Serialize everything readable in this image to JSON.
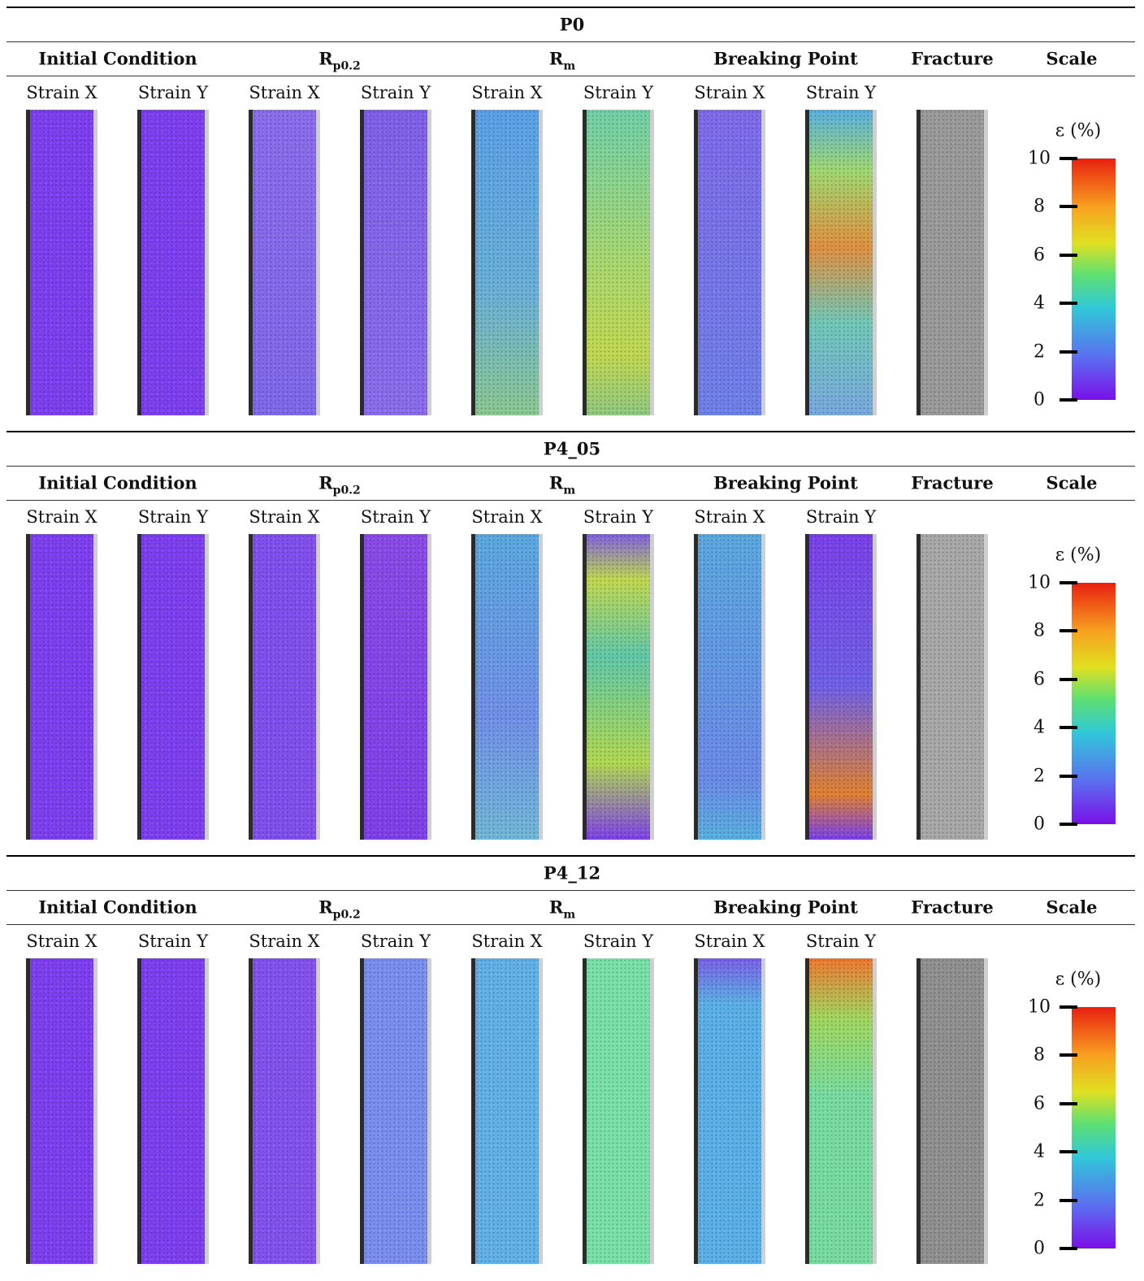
{
  "sections": [
    {
      "title": "P0",
      "headers": [
        {
          "text": "Initial Condition"
        },
        {
          "base": "R",
          "sub": "p0.2"
        },
        {
          "base": "R",
          "sub": "m"
        },
        {
          "text": "Breaking Point"
        },
        {
          "text": "Fracture"
        },
        {
          "text": "Scale"
        }
      ],
      "subheaders": [
        "Strain X",
        "Strain Y",
        "Strain X",
        "Strain Y",
        "Strain X",
        "Strain Y",
        "Strain X",
        "Strain Y"
      ],
      "scale": {
        "label": "ε (%)",
        "ticks": [
          10,
          8,
          6,
          4,
          2,
          0
        ]
      }
    },
    {
      "title": "P4_05",
      "headers": [
        {
          "text": "Initial Condition"
        },
        {
          "base": "R",
          "sub": "p0.2"
        },
        {
          "base": "R",
          "sub": "m"
        },
        {
          "text": "Breaking Point"
        },
        {
          "text": "Fracture"
        },
        {
          "text": "Scale"
        }
      ],
      "subheaders": [
        "Strain X",
        "Strain Y",
        "Strain X",
        "Strain Y",
        "Strain X",
        "Strain Y",
        "Strain X",
        "Strain Y"
      ],
      "scale": {
        "label": "ε (%)",
        "ticks": [
          10,
          8,
          6,
          4,
          2,
          0
        ]
      }
    },
    {
      "title": "P4_12",
      "headers": [
        {
          "text": "Initial Condition"
        },
        {
          "base": "R",
          "sub": "p0.2"
        },
        {
          "base": "R",
          "sub": "m"
        },
        {
          "text": "Breaking Point"
        },
        {
          "text": "Fracture"
        },
        {
          "text": "Scale"
        }
      ],
      "subheaders": [
        "Strain X",
        "Strain Y",
        "Strain X",
        "Strain Y",
        "Strain X",
        "Strain Y",
        "Strain X",
        "Strain Y"
      ],
      "scale": {
        "label": "ε (%)",
        "ticks": [
          10,
          8,
          6,
          4,
          2,
          0
        ]
      }
    }
  ]
}
